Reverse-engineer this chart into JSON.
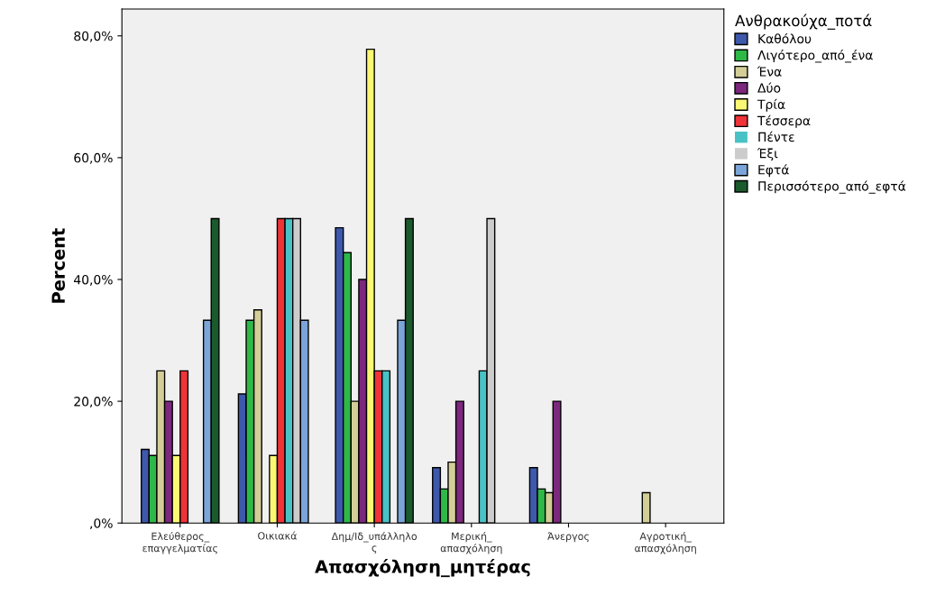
{
  "chart_data": {
    "type": "bar",
    "xlabel": "Απασχόληση_μητέρας",
    "ylabel": "Percent",
    "legend_title": "Ανθρακούχα_ποτά",
    "categories": [
      "Ελεύθερος_\nεπαγγελματίας",
      "Οικιακά",
      "Δημ/Ιδ_υπάλληλο\nς",
      "Μερική_\nαπασχόληση",
      "Άνεργος",
      "Αγροτική_\nαπασχόληση"
    ],
    "series": [
      {
        "name": "Καθόλου",
        "color": "#3e58ac",
        "values": [
          12.1,
          21.2,
          48.5,
          9.1,
          9.1,
          0
        ]
      },
      {
        "name": "Λιγότερο_από_ένα",
        "color": "#2eb848",
        "values": [
          11.1,
          33.3,
          44.4,
          5.6,
          5.6,
          0
        ]
      },
      {
        "name": "Ένα",
        "color": "#d3ce97",
        "values": [
          25,
          35,
          20,
          10,
          5,
          5
        ]
      },
      {
        "name": "Δύο",
        "color": "#7c287d",
        "values": [
          20,
          0,
          40,
          20,
          20,
          0
        ]
      },
      {
        "name": "Τρία",
        "color": "#fbf873",
        "values": [
          11.1,
          11.1,
          77.8,
          0,
          0,
          0
        ]
      },
      {
        "name": "Τέσσερα",
        "color": "#ef3338",
        "values": [
          25,
          50,
          25,
          0,
          0,
          0
        ]
      },
      {
        "name": "Πέντε",
        "color": "#48c2c5",
        "values": [
          0,
          50,
          25,
          25,
          0,
          0
        ]
      },
      {
        "name": "Έξι",
        "color": "#cccccc",
        "values": [
          0,
          50,
          0,
          50,
          0,
          0
        ]
      },
      {
        "name": "Εφτά",
        "color": "#7ba4d9",
        "values": [
          33.3,
          33.3,
          33.3,
          0,
          0,
          0
        ]
      },
      {
        "name": "Περισσότερο_από_εφτά",
        "color": "#1a5a2c",
        "values": [
          50,
          0,
          50,
          0,
          0,
          0
        ]
      }
    ],
    "ylim": [
      0,
      84.4
    ],
    "yticks": [
      {
        "value": 0,
        "label": ",0%"
      },
      {
        "value": 20,
        "label": "20,0%"
      },
      {
        "value": 40,
        "label": "40,0%"
      },
      {
        "value": 60,
        "label": "60,0%"
      },
      {
        "value": 80,
        "label": "80,0%"
      }
    ],
    "grid": false,
    "legend": "right"
  }
}
